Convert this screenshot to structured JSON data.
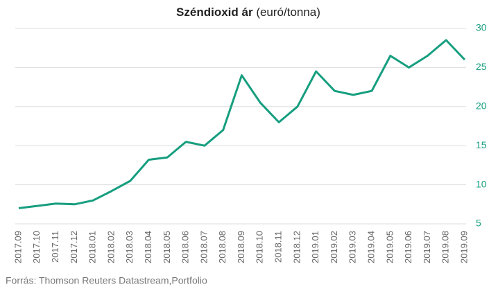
{
  "chart_data": {
    "type": "line",
    "title": "Széndioxid ár",
    "unit": "(euró/tonna)",
    "source": "Forrás: Thomson Reuters Datastream,Portfolio",
    "categories": [
      "2017.09",
      "2017.10",
      "2017.11",
      "2017.12",
      "2018.01",
      "2018.02",
      "2018.03",
      "2018.04",
      "2018.05",
      "2018.06",
      "2018.07",
      "2018.08",
      "2018.09",
      "2018.10",
      "2018.11",
      "2018.12",
      "2019.01",
      "2019.02",
      "2019.03",
      "2019.04",
      "2019.05",
      "2019.06",
      "2019.07",
      "2019.08",
      "2019.09"
    ],
    "series": [
      {
        "name": "Széndioxid ár",
        "color": "#169e7f",
        "values": [
          7.0,
          7.3,
          7.6,
          7.5,
          8.0,
          9.2,
          10.5,
          13.2,
          13.5,
          15.5,
          15.0,
          17.0,
          24.0,
          20.5,
          18.0,
          20.0,
          24.5,
          22.0,
          21.5,
          22.0,
          26.5,
          25.0,
          26.5,
          28.5,
          26.0
        ]
      }
    ],
    "ylim": [
      5,
      30
    ],
    "yticks": [
      5,
      10,
      15,
      20,
      25,
      30
    ],
    "grid": true,
    "y_axis_side": "right"
  }
}
